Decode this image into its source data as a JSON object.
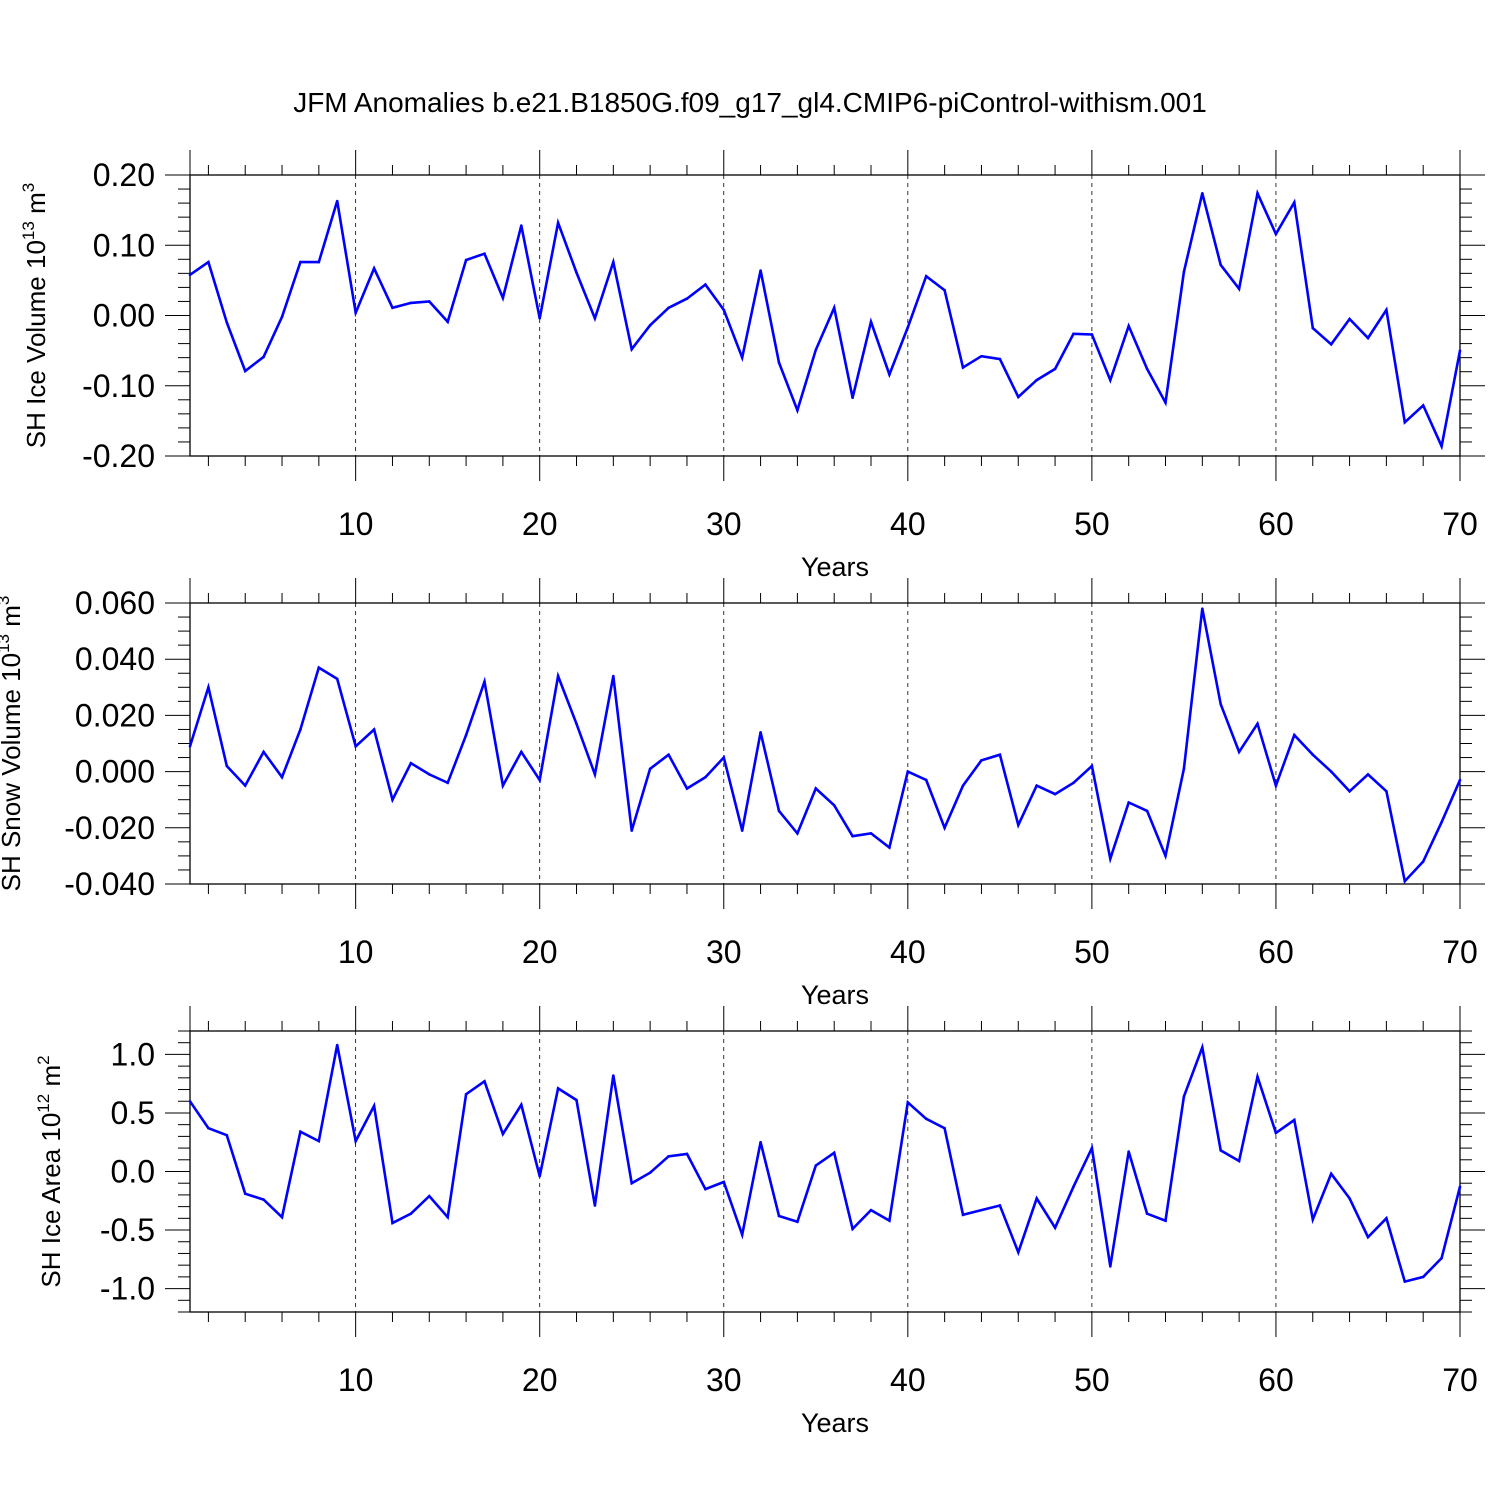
{
  "title": "JFM Anomalies b.e21.B1850G.f09_g17_gl4.CMIP6-piControl-withism.001",
  "colors": {
    "line": "#0000ff",
    "axis": "#000000",
    "grid": "#000000",
    "background": "#ffffff"
  },
  "chart_data": [
    {
      "type": "line",
      "name": "ice-volume",
      "ylabel_main": "SH Ice Volume 10",
      "ylabel_exp": "13",
      "ylabel_tail": " m",
      "ylabel_unit_exp": "3",
      "xlabel": "Years",
      "xlim": [
        1,
        70
      ],
      "ylim": [
        -0.2,
        0.2
      ],
      "yticks": [
        -0.2,
        -0.1,
        0.0,
        0.1,
        0.2
      ],
      "ytick_labels": [
        "-0.20",
        "-0.10",
        "0.00",
        "0.10",
        "0.20"
      ],
      "xticks": [
        10,
        20,
        30,
        40,
        50,
        60,
        70
      ],
      "xtick_labels": [
        "10",
        "20",
        "30",
        "40",
        "50",
        "60",
        "70"
      ],
      "x_minor_step": 2,
      "y_minor_step": 0.02,
      "vgrid": [
        10,
        20,
        30,
        40,
        50,
        60
      ],
      "x_start": 1,
      "values": [
        0.058,
        0.076,
        -0.01,
        -0.079,
        -0.059,
        -0.002,
        0.076,
        0.076,
        0.163,
        0.004,
        0.067,
        0.011,
        0.018,
        0.02,
        -0.009,
        0.079,
        0.088,
        0.025,
        0.128,
        -0.004,
        0.132,
        0.061,
        -0.004,
        0.076,
        -0.048,
        -0.014,
        0.011,
        0.024,
        0.044,
        0.008,
        -0.06,
        0.064,
        -0.067,
        -0.135,
        -0.049,
        0.011,
        -0.117,
        -0.009,
        -0.084,
        -0.017,
        0.056,
        0.036,
        -0.074,
        -0.058,
        -0.062,
        -0.116,
        -0.092,
        -0.076,
        -0.026,
        -0.027,
        -0.092,
        -0.015,
        -0.076,
        -0.124,
        0.062,
        0.174,
        0.072,
        0.038,
        0.174,
        0.116,
        0.161,
        -0.018,
        -0.041,
        -0.005,
        -0.032,
        0.008,
        -0.152,
        -0.128,
        -0.186,
        -0.05
      ]
    },
    {
      "type": "line",
      "name": "snow-volume",
      "ylabel_main": "SH Snow Volume 10",
      "ylabel_exp": "13",
      "ylabel_tail": " m",
      "ylabel_unit_exp": "3",
      "xlabel": "Years",
      "xlim": [
        1,
        70
      ],
      "ylim": [
        -0.04,
        0.06
      ],
      "yticks": [
        -0.04,
        -0.02,
        0.0,
        0.02,
        0.04,
        0.06
      ],
      "ytick_labels": [
        "-0.040",
        "-0.020",
        "0.000",
        "0.020",
        "0.040",
        "0.060"
      ],
      "xticks": [
        10,
        20,
        30,
        40,
        50,
        60,
        70
      ],
      "xtick_labels": [
        "10",
        "20",
        "30",
        "40",
        "50",
        "60",
        "70"
      ],
      "x_minor_step": 2,
      "y_minor_step": 0.005,
      "vgrid": [
        10,
        20,
        30,
        40,
        50,
        60
      ],
      "x_start": 1,
      "values": [
        0.009,
        0.03,
        0.002,
        -0.005,
        0.007,
        -0.002,
        0.015,
        0.037,
        0.033,
        0.009,
        0.015,
        -0.01,
        0.003,
        -0.001,
        -0.004,
        0.013,
        0.032,
        -0.005,
        0.007,
        -0.003,
        0.034,
        0.017,
        -0.001,
        0.034,
        -0.021,
        0.001,
        0.006,
        -0.006,
        -0.002,
        0.005,
        -0.021,
        0.014,
        -0.014,
        -0.022,
        -0.006,
        -0.012,
        -0.023,
        -0.022,
        -0.027,
        -0.0,
        -0.003,
        -0.02,
        -0.005,
        0.004,
        0.006,
        -0.019,
        -0.005,
        -0.008,
        -0.004,
        0.002,
        -0.031,
        -0.011,
        -0.014,
        -0.03,
        0.001,
        0.058,
        0.024,
        0.007,
        0.017,
        -0.005,
        0.013,
        0.006,
        -0.0,
        -0.007,
        -0.001,
        -0.007,
        -0.039,
        -0.032,
        -0.018,
        -0.003
      ]
    },
    {
      "type": "line",
      "name": "ice-area",
      "ylabel_main": "SH Ice Area 10",
      "ylabel_exp": "12",
      "ylabel_tail": " m",
      "ylabel_unit_exp": "2",
      "xlabel": "Years",
      "xlim": [
        1,
        70
      ],
      "ylim": [
        -1.2,
        1.2
      ],
      "yticks": [
        -1.0,
        -0.5,
        0.0,
        0.5,
        1.0
      ],
      "ytick_labels": [
        "-1.0",
        "-0.5",
        "0.0",
        "0.5",
        "1.0"
      ],
      "xticks": [
        10,
        20,
        30,
        40,
        50,
        60,
        70
      ],
      "xtick_labels": [
        "10",
        "20",
        "30",
        "40",
        "50",
        "60",
        "70"
      ],
      "x_minor_step": 2,
      "y_minor_step": 0.1,
      "vgrid": [
        10,
        20,
        30,
        40,
        50,
        60
      ],
      "x_start": 1,
      "values": [
        0.6,
        0.37,
        0.31,
        -0.19,
        -0.24,
        -0.39,
        0.34,
        0.26,
        1.08,
        0.26,
        0.56,
        -0.44,
        -0.36,
        -0.21,
        -0.39,
        0.66,
        0.77,
        0.32,
        0.57,
        -0.04,
        0.71,
        0.61,
        -0.29,
        0.82,
        -0.1,
        -0.01,
        0.13,
        0.15,
        -0.15,
        -0.09,
        -0.54,
        0.25,
        -0.38,
        -0.43,
        0.05,
        0.16,
        -0.49,
        -0.33,
        -0.42,
        0.59,
        0.45,
        0.37,
        -0.37,
        -0.33,
        -0.29,
        -0.69,
        -0.23,
        -0.48,
        -0.13,
        0.2,
        -0.81,
        0.17,
        -0.36,
        -0.42,
        0.64,
        1.06,
        0.18,
        0.09,
        0.81,
        0.33,
        0.44,
        -0.41,
        -0.02,
        -0.23,
        -0.56,
        -0.4,
        -0.94,
        -0.9,
        -0.74,
        -0.13
      ]
    }
  ]
}
